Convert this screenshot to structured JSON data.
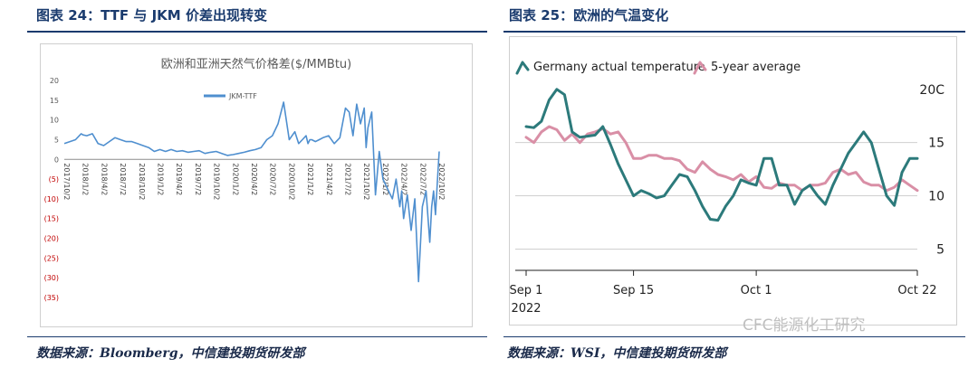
{
  "left": {
    "fig_title": "图表 24：TTF 与 JKM 价差出现转变",
    "source": "数据来源：Bloomberg，中信建投期货研发部"
  },
  "right": {
    "fig_title": "图表 25：欧洲的气温变化",
    "source": "数据来源：WSI，中信建投期货研发部"
  },
  "watermark": "CFC能源化工研究",
  "chart_data": [
    {
      "type": "line",
      "title": "欧洲和亚洲天然气价格差($/MMBtu)",
      "legend": [
        "JKM-TTF"
      ],
      "legend_position": "top-center",
      "ylim": [
        -35,
        20
      ],
      "yticks": [
        20,
        15,
        10,
        5,
        0,
        -5,
        -10,
        -15,
        -20,
        -25,
        -30,
        -35
      ],
      "ytick_labels": [
        "20",
        "15",
        "10",
        "5",
        "0",
        "(5)",
        "(10)",
        "(15)",
        "(20)",
        "(25)",
        "(30)",
        "(35)"
      ],
      "negative_tick_color": "#c00000",
      "xtick_labels": [
        "2017/10/2",
        "2018/1/2",
        "2018/4/2",
        "2018/7/2",
        "2018/10/2",
        "2019/1/2",
        "2019/4/2",
        "2019/7/2",
        "2019/10/2",
        "2020/1/2",
        "2020/4/2",
        "2020/7/2",
        "2020/10/2",
        "2021/1/2",
        "2021/4/2",
        "2021/7/2",
        "2021/10/2",
        "2022/1/2",
        "2022/4/2",
        "2022/7/2",
        "2022/10/2"
      ],
      "grid": false,
      "line_color": "#4f8fcf",
      "series": [
        {
          "name": "JKM-TTF",
          "x": [
            0.0,
            0.3,
            0.6,
            0.9,
            1.0,
            1.2,
            1.5,
            1.8,
            2.1,
            2.4,
            2.7,
            3.0,
            3.3,
            3.6,
            3.9,
            4.2,
            4.5,
            4.8,
            5.1,
            5.4,
            5.7,
            6.0,
            6.3,
            6.6,
            6.9,
            7.2,
            7.5,
            7.8,
            8.1,
            8.4,
            8.7,
            9.0,
            9.3,
            9.6,
            9.9,
            10.2,
            10.5,
            10.8,
            11.1,
            11.4,
            11.7,
            12.0,
            12.3,
            12.5,
            12.7,
            12.9,
            13.0,
            13.1,
            13.2,
            13.4,
            13.6,
            13.8,
            14.1,
            14.4,
            14.7,
            15.0,
            15.2,
            15.4,
            15.6,
            15.8,
            16.0,
            16.1,
            16.2,
            16.4,
            16.6,
            16.8,
            17.0,
            17.3,
            17.5,
            17.7,
            17.9,
            18.0,
            18.1,
            18.3,
            18.5,
            18.7,
            18.9,
            19.1,
            19.3,
            19.5,
            19.6,
            19.7,
            19.8,
            19.9,
            20.0
          ],
          "y": [
            4,
            4.5,
            5,
            6.5,
            6.2,
            6,
            6.5,
            4,
            3.5,
            4.5,
            5.5,
            5,
            4.5,
            4.5,
            4,
            3.5,
            3,
            2,
            2.5,
            2,
            2.5,
            2,
            2.2,
            1.8,
            2,
            2.2,
            1.5,
            1.8,
            2,
            1.5,
            1,
            1.2,
            1.5,
            1.8,
            2.2,
            2.5,
            3,
            5,
            6,
            9,
            14.5,
            5,
            7,
            4,
            5,
            6,
            4,
            5,
            5,
            4.5,
            5,
            5.5,
            6,
            4,
            5.5,
            13,
            12,
            6,
            14,
            9,
            13,
            3,
            8,
            12,
            -9,
            2,
            -5,
            -8,
            -10,
            -5,
            -12,
            -8,
            -15,
            -9,
            -18,
            -10,
            -31,
            -12,
            -8,
            -21,
            -12,
            -8,
            -14,
            -6,
            2
          ]
        }
      ]
    },
    {
      "type": "line",
      "title": "",
      "legend": [
        "Germany actual temperature",
        "5-year average"
      ],
      "legend_position": "top-left",
      "ylim": [
        3,
        21
      ],
      "yticks": [
        20,
        15,
        10,
        5
      ],
      "ytick_labels": [
        "20C",
        "15",
        "10",
        "5"
      ],
      "yaxis_side": "right",
      "grid": true,
      "xlim": [
        0,
        51
      ],
      "xticks": [
        0,
        14,
        30,
        51
      ],
      "xtick_labels": [
        "Sep 1\n2022",
        "Sep 15",
        "Oct 1",
        "Oct 22"
      ],
      "series": [
        {
          "name": "Germany actual temperature",
          "color": "#2c7a7b",
          "x": [
            0,
            1,
            2,
            3,
            4,
            5,
            6,
            7,
            8,
            9,
            10,
            11,
            12,
            13,
            14,
            15,
            16,
            17,
            18,
            19,
            20,
            21,
            22,
            23,
            24,
            25,
            26,
            27,
            28,
            29,
            30,
            31,
            32,
            33,
            34,
            35,
            36,
            37,
            38,
            39,
            40,
            41,
            42,
            43,
            44,
            45,
            46,
            47,
            48,
            49,
            50,
            51
          ],
          "y": [
            16.5,
            16.4,
            17,
            19,
            20,
            19.5,
            16,
            15.5,
            15.6,
            15.7,
            16.5,
            14.8,
            13,
            11.5,
            10,
            10.5,
            10.2,
            9.8,
            10,
            11,
            12,
            11.8,
            10.5,
            9,
            7.8,
            7.7,
            9,
            10,
            11.5,
            11.2,
            11,
            13.5,
            13.5,
            11,
            11,
            9.2,
            10.5,
            11,
            10,
            9.2,
            11,
            12.5,
            14,
            15,
            16,
            15,
            12.5,
            10,
            9.1,
            12.2,
            13.5,
            13.5
          ]
        },
        {
          "name": "5-year average",
          "color": "#d98fa6",
          "x": [
            0,
            1,
            2,
            3,
            4,
            5,
            6,
            7,
            8,
            9,
            10,
            11,
            12,
            13,
            14,
            15,
            16,
            17,
            18,
            19,
            20,
            21,
            22,
            23,
            24,
            25,
            26,
            27,
            28,
            29,
            30,
            31,
            32,
            33,
            34,
            35,
            36,
            37,
            38,
            39,
            40,
            41,
            42,
            43,
            44,
            45,
            46,
            47,
            48,
            49,
            50,
            51
          ],
          "y": [
            15.5,
            15,
            16,
            16.5,
            16.2,
            15.2,
            15.8,
            15,
            15.8,
            16,
            16.3,
            15.8,
            16,
            15,
            13.5,
            13.5,
            13.8,
            13.8,
            13.5,
            13.5,
            13.3,
            12.5,
            12.2,
            13.2,
            12.5,
            12,
            11.8,
            11.5,
            12,
            11.3,
            11.8,
            10.8,
            10.7,
            11.2,
            11,
            11,
            10.5,
            11,
            11,
            11.2,
            12.2,
            12.5,
            12,
            12.2,
            11.3,
            11,
            11,
            10.5,
            10.8,
            11.5,
            11,
            10.5
          ]
        }
      ]
    }
  ]
}
